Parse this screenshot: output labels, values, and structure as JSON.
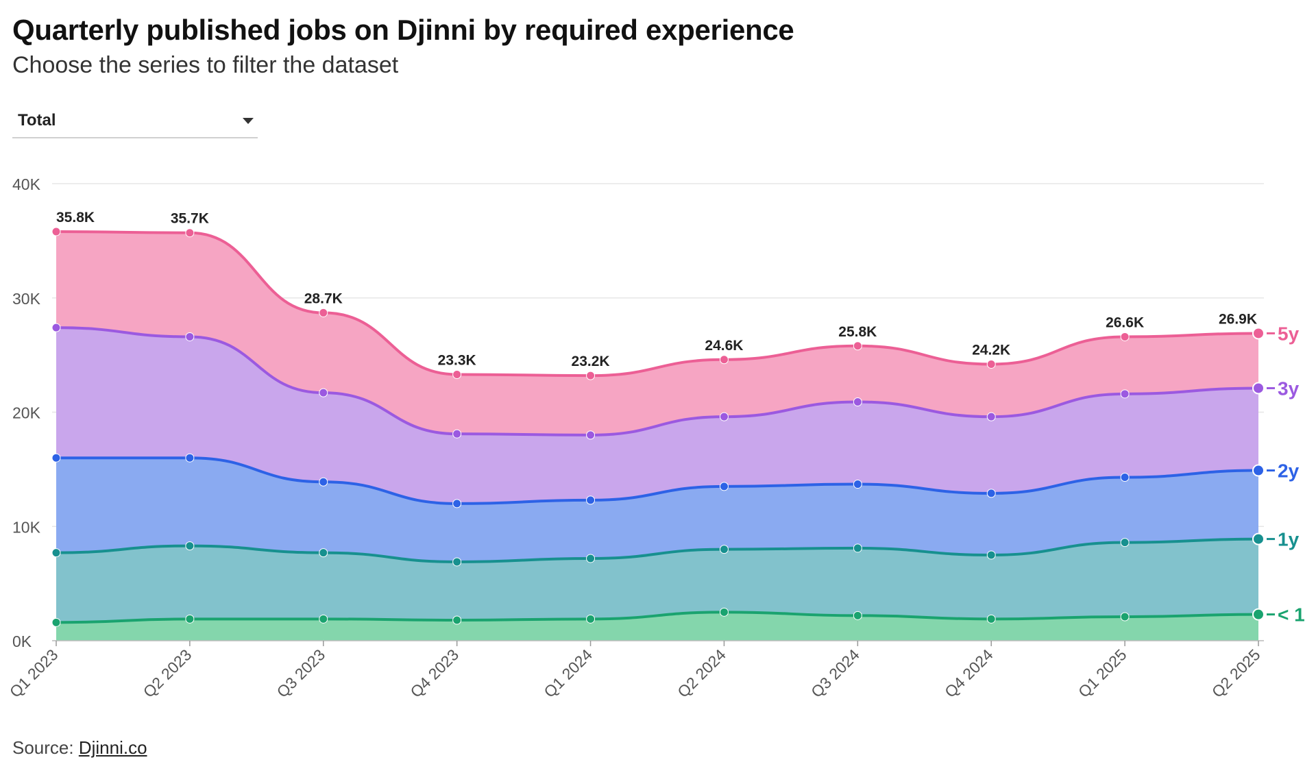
{
  "title": "Quarterly published jobs on Djinni by required experience",
  "subtitle": "Choose the series to filter the dataset",
  "filter": {
    "selected": "Total"
  },
  "source": {
    "prefix": "Source: ",
    "link_text": "Djinni.co"
  },
  "chart_data": {
    "type": "area",
    "stacked": true,
    "categories": [
      "Q1 2023",
      "Q2 2023",
      "Q3 2023",
      "Q4 2023",
      "Q1 2024",
      "Q2 2024",
      "Q3 2024",
      "Q4 2024",
      "Q1 2025",
      "Q2 2025"
    ],
    "series": [
      {
        "name": "< 1",
        "color": "#1aa36f",
        "fill": "#84d6ac",
        "values": [
          1600,
          1900,
          1900,
          1800,
          1900,
          2500,
          2200,
          1900,
          2100,
          2300
        ]
      },
      {
        "name": "1y",
        "color": "#17908f",
        "fill": "#82c2cc",
        "values": [
          6100,
          6400,
          5800,
          5100,
          5300,
          5500,
          5900,
          5600,
          6500,
          6600
        ]
      },
      {
        "name": "2y",
        "color": "#2d62e6",
        "fill": "#8aaaf1",
        "values": [
          8300,
          7700,
          6200,
          5100,
          5100,
          5500,
          5600,
          5400,
          5700,
          6000
        ]
      },
      {
        "name": "3y",
        "color": "#9b59e0",
        "fill": "#c9a6ec",
        "values": [
          11400,
          10600,
          7800,
          6100,
          5700,
          6100,
          7200,
          6700,
          7300,
          7200
        ]
      },
      {
        "name": "5y",
        "color": "#ec5f95",
        "fill": "#f6a5c3",
        "values": [
          8400,
          9100,
          7000,
          5200,
          5200,
          5000,
          4900,
          4600,
          5000,
          4800
        ]
      }
    ],
    "totals": [
      35800,
      35700,
      28700,
      23300,
      23200,
      24600,
      25800,
      24200,
      26600,
      26900
    ],
    "total_labels": [
      "35.8K",
      "35.7K",
      "28.7K",
      "23.3K",
      "23.2K",
      "24.6K",
      "25.8K",
      "24.2K",
      "26.6K",
      "26.9K"
    ],
    "ylim": [
      0,
      40000
    ],
    "yticks": [
      0,
      10000,
      20000,
      30000,
      40000
    ],
    "ytick_labels": [
      "0K",
      "10K",
      "20K",
      "30K",
      "40K"
    ],
    "grid": true,
    "legend": "right-end labels"
  }
}
